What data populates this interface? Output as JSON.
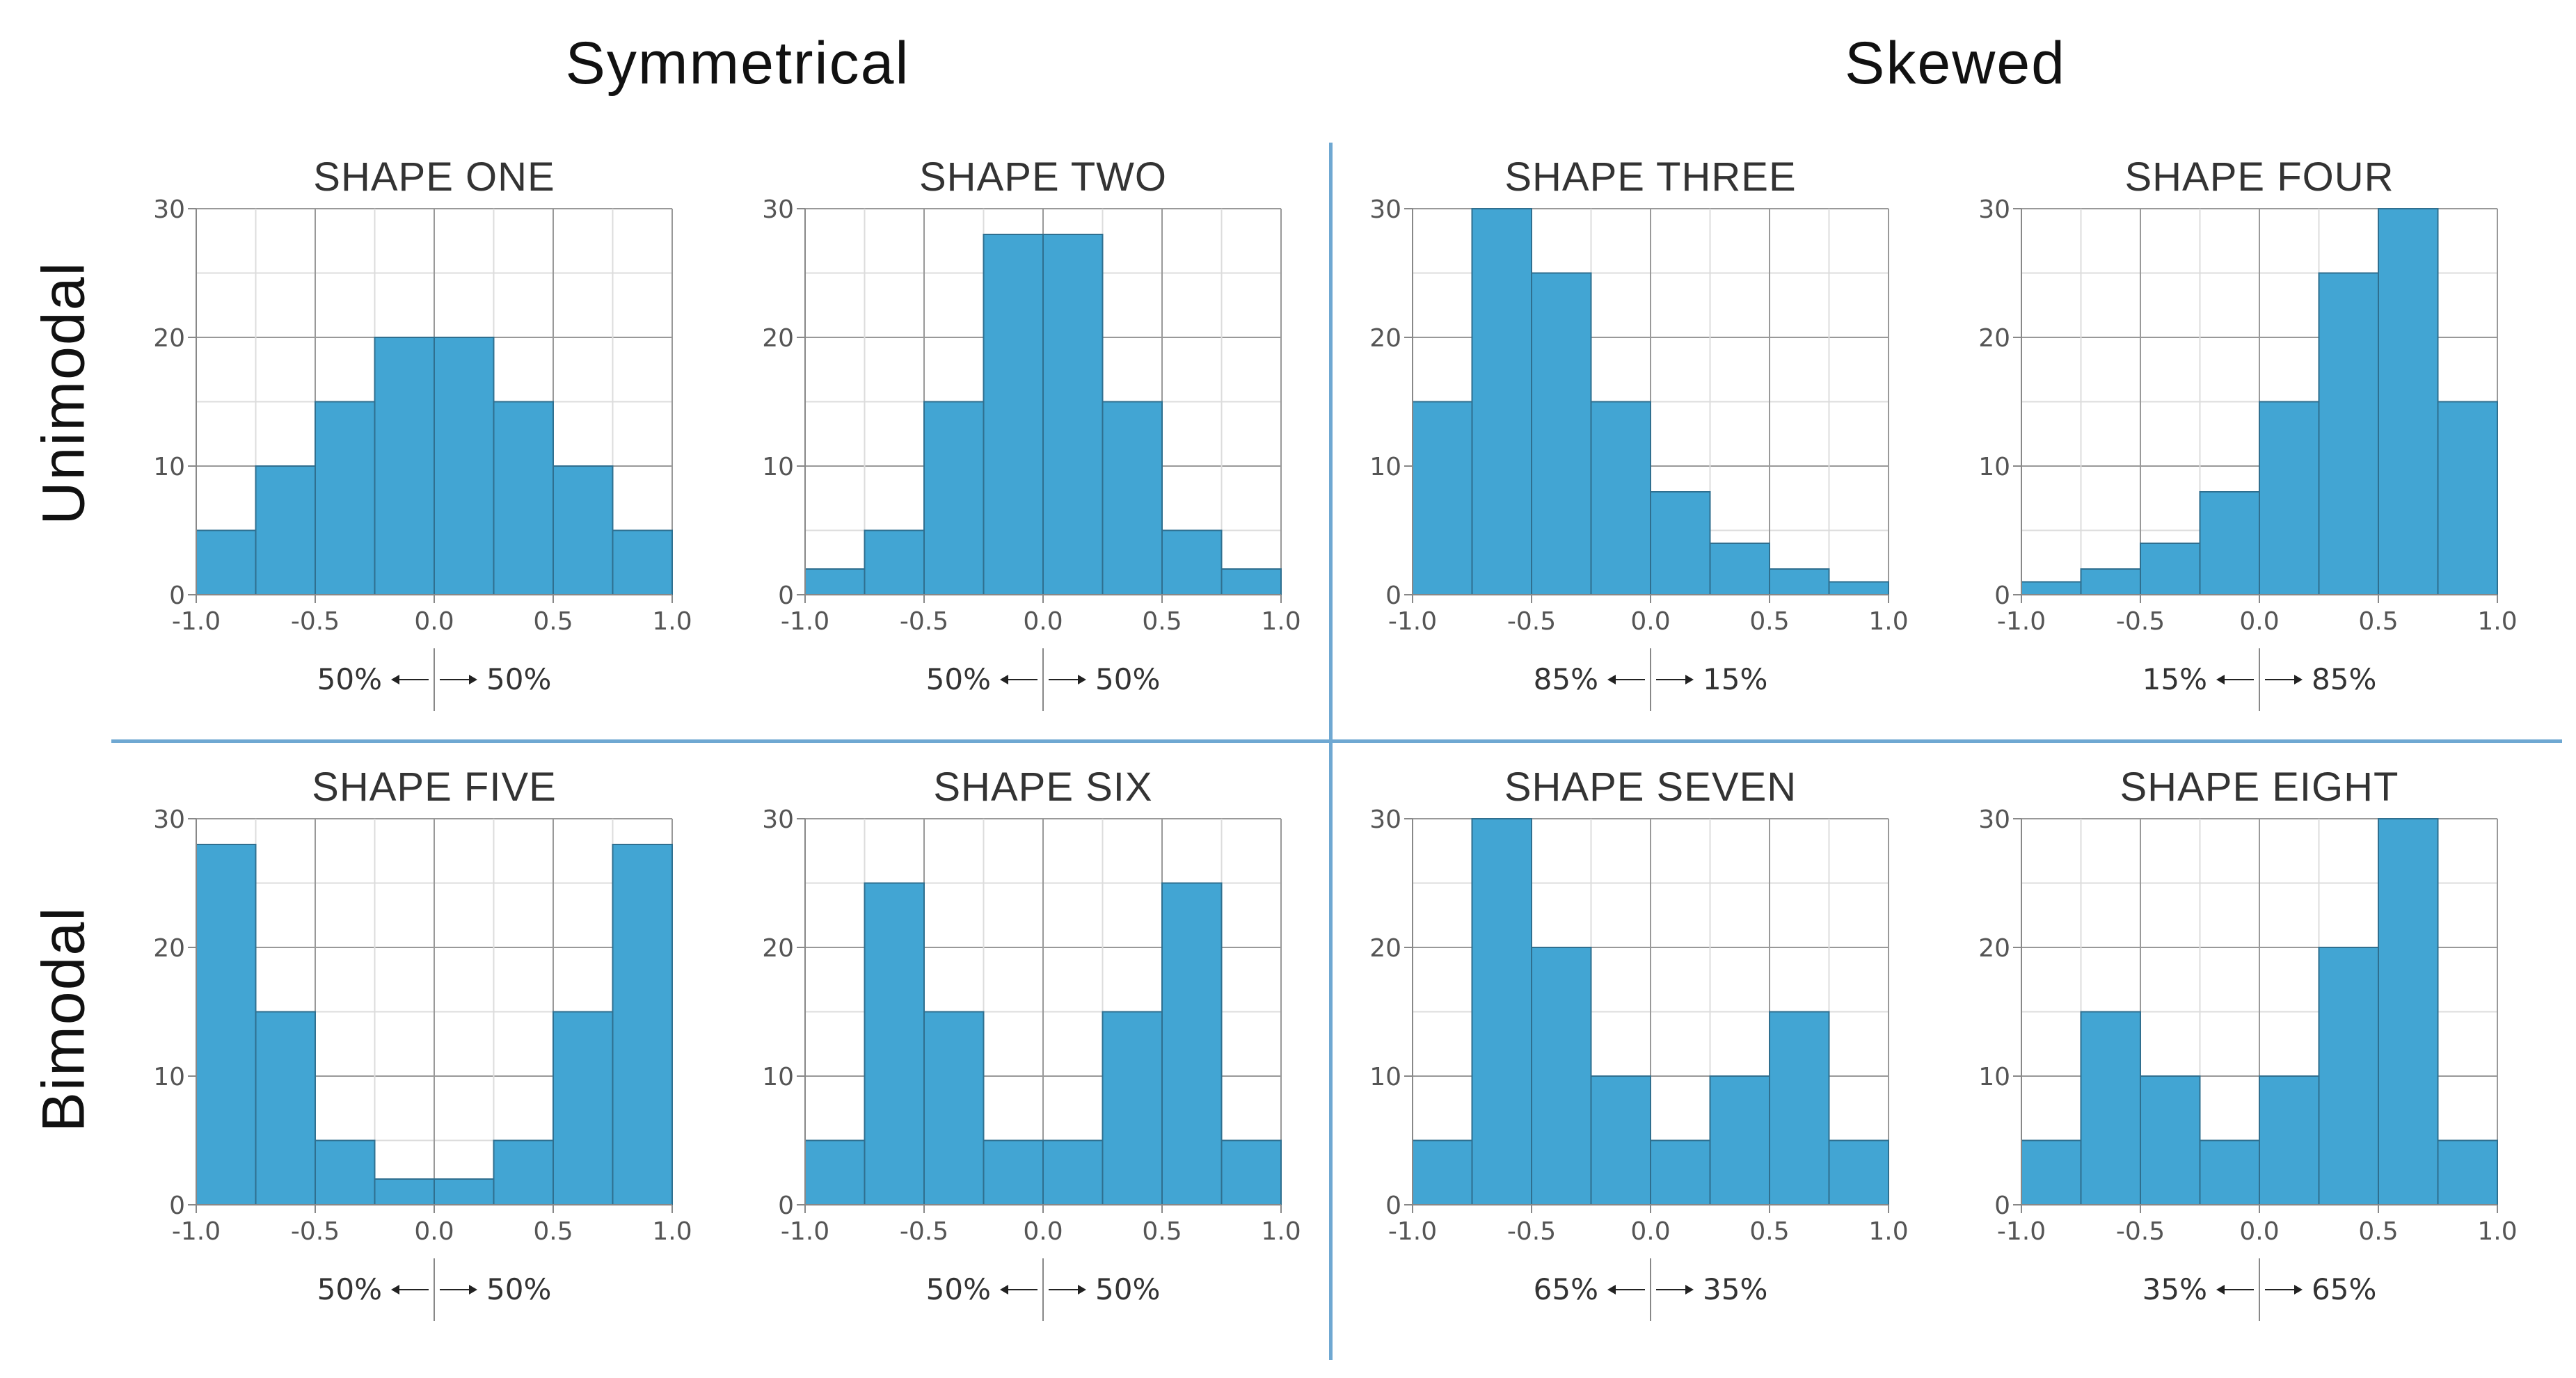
{
  "headers": {
    "symmetrical": "Symmetrical",
    "skewed": "Skewed",
    "unimodal": "Unimodal",
    "bimodal": "Bimodal"
  },
  "colors": {
    "bar_fill": "#42a5d3",
    "bar_stroke": "#2f6f8f",
    "divider": "#6fa8d2",
    "grid": "#dcdcdc",
    "grid_major": "#999999"
  },
  "chart_data": [
    {
      "type": "bar",
      "title": "SHAPE ONE",
      "bin_edges": [
        -1.0,
        -0.75,
        -0.5,
        -0.25,
        0.0,
        0.25,
        0.5,
        0.75,
        1.0
      ],
      "values": [
        5,
        10,
        15,
        20,
        20,
        15,
        10,
        5
      ],
      "xticks": [
        "-1.0",
        "-0.5",
        "0.0",
        "0.5",
        "1.0"
      ],
      "yticks": [
        "0",
        "10",
        "20",
        "30"
      ],
      "xlim": [
        -1.0,
        1.0
      ],
      "ylim": [
        0,
        30
      ],
      "left_pct": "50%",
      "right_pct": "50%"
    },
    {
      "type": "bar",
      "title": "SHAPE TWO",
      "bin_edges": [
        -1.0,
        -0.75,
        -0.5,
        -0.25,
        0.0,
        0.25,
        0.5,
        0.75,
        1.0
      ],
      "values": [
        2,
        5,
        15,
        28,
        28,
        15,
        5,
        2
      ],
      "xticks": [
        "-1.0",
        "-0.5",
        "0.0",
        "0.5",
        "1.0"
      ],
      "yticks": [
        "0",
        "10",
        "20",
        "30"
      ],
      "xlim": [
        -1.0,
        1.0
      ],
      "ylim": [
        0,
        30
      ],
      "left_pct": "50%",
      "right_pct": "50%"
    },
    {
      "type": "bar",
      "title": "SHAPE THREE",
      "bin_edges": [
        -1.0,
        -0.75,
        -0.5,
        -0.25,
        0.0,
        0.25,
        0.5,
        0.75,
        1.0
      ],
      "values": [
        15,
        30,
        25,
        15,
        8,
        4,
        2,
        1
      ],
      "xticks": [
        "-1.0",
        "-0.5",
        "0.0",
        "0.5",
        "1.0"
      ],
      "yticks": [
        "0",
        "10",
        "20",
        "30"
      ],
      "xlim": [
        -1.0,
        1.0
      ],
      "ylim": [
        0,
        30
      ],
      "left_pct": "85%",
      "right_pct": "15%"
    },
    {
      "type": "bar",
      "title": "SHAPE FOUR",
      "bin_edges": [
        -1.0,
        -0.75,
        -0.5,
        -0.25,
        0.0,
        0.25,
        0.5,
        0.75,
        1.0
      ],
      "values": [
        1,
        2,
        4,
        8,
        15,
        25,
        30,
        15
      ],
      "xticks": [
        "-1.0",
        "-0.5",
        "0.0",
        "0.5",
        "1.0"
      ],
      "yticks": [
        "0",
        "10",
        "20",
        "30"
      ],
      "xlim": [
        -1.0,
        1.0
      ],
      "ylim": [
        0,
        30
      ],
      "left_pct": "15%",
      "right_pct": "85%"
    },
    {
      "type": "bar",
      "title": "SHAPE FIVE",
      "bin_edges": [
        -1.0,
        -0.75,
        -0.5,
        -0.25,
        0.0,
        0.25,
        0.5,
        0.75,
        1.0
      ],
      "values": [
        28,
        15,
        5,
        2,
        2,
        5,
        15,
        28
      ],
      "xticks": [
        "-1.0",
        "-0.5",
        "0.0",
        "0.5",
        "1.0"
      ],
      "yticks": [
        "0",
        "10",
        "20",
        "30"
      ],
      "xlim": [
        -1.0,
        1.0
      ],
      "ylim": [
        0,
        30
      ],
      "left_pct": "50%",
      "right_pct": "50%"
    },
    {
      "type": "bar",
      "title": "SHAPE SIX",
      "bin_edges": [
        -1.0,
        -0.75,
        -0.5,
        -0.25,
        0.0,
        0.25,
        0.5,
        0.75,
        1.0
      ],
      "values": [
        5,
        25,
        15,
        5,
        5,
        15,
        25,
        5
      ],
      "xticks": [
        "-1.0",
        "-0.5",
        "0.0",
        "0.5",
        "1.0"
      ],
      "yticks": [
        "0",
        "10",
        "20",
        "30"
      ],
      "xlim": [
        -1.0,
        1.0
      ],
      "ylim": [
        0,
        30
      ],
      "left_pct": "50%",
      "right_pct": "50%"
    },
    {
      "type": "bar",
      "title": "SHAPE SEVEN",
      "bin_edges": [
        -1.0,
        -0.75,
        -0.5,
        -0.25,
        0.0,
        0.25,
        0.5,
        0.75,
        1.0
      ],
      "values": [
        5,
        30,
        20,
        10,
        5,
        10,
        15,
        5
      ],
      "xticks": [
        "-1.0",
        "-0.5",
        "0.0",
        "0.5",
        "1.0"
      ],
      "yticks": [
        "0",
        "10",
        "20",
        "30"
      ],
      "xlim": [
        -1.0,
        1.0
      ],
      "ylim": [
        0,
        30
      ],
      "left_pct": "65%",
      "right_pct": "35%"
    },
    {
      "type": "bar",
      "title": "SHAPE EIGHT",
      "bin_edges": [
        -1.0,
        -0.75,
        -0.5,
        -0.25,
        0.0,
        0.25,
        0.5,
        0.75,
        1.0
      ],
      "values": [
        5,
        15,
        10,
        5,
        10,
        20,
        30,
        5
      ],
      "xticks": [
        "-1.0",
        "-0.5",
        "0.0",
        "0.5",
        "1.0"
      ],
      "yticks": [
        "0",
        "10",
        "20",
        "30"
      ],
      "xlim": [
        -1.0,
        1.0
      ],
      "ylim": [
        0,
        30
      ],
      "left_pct": "35%",
      "right_pct": "65%"
    }
  ]
}
